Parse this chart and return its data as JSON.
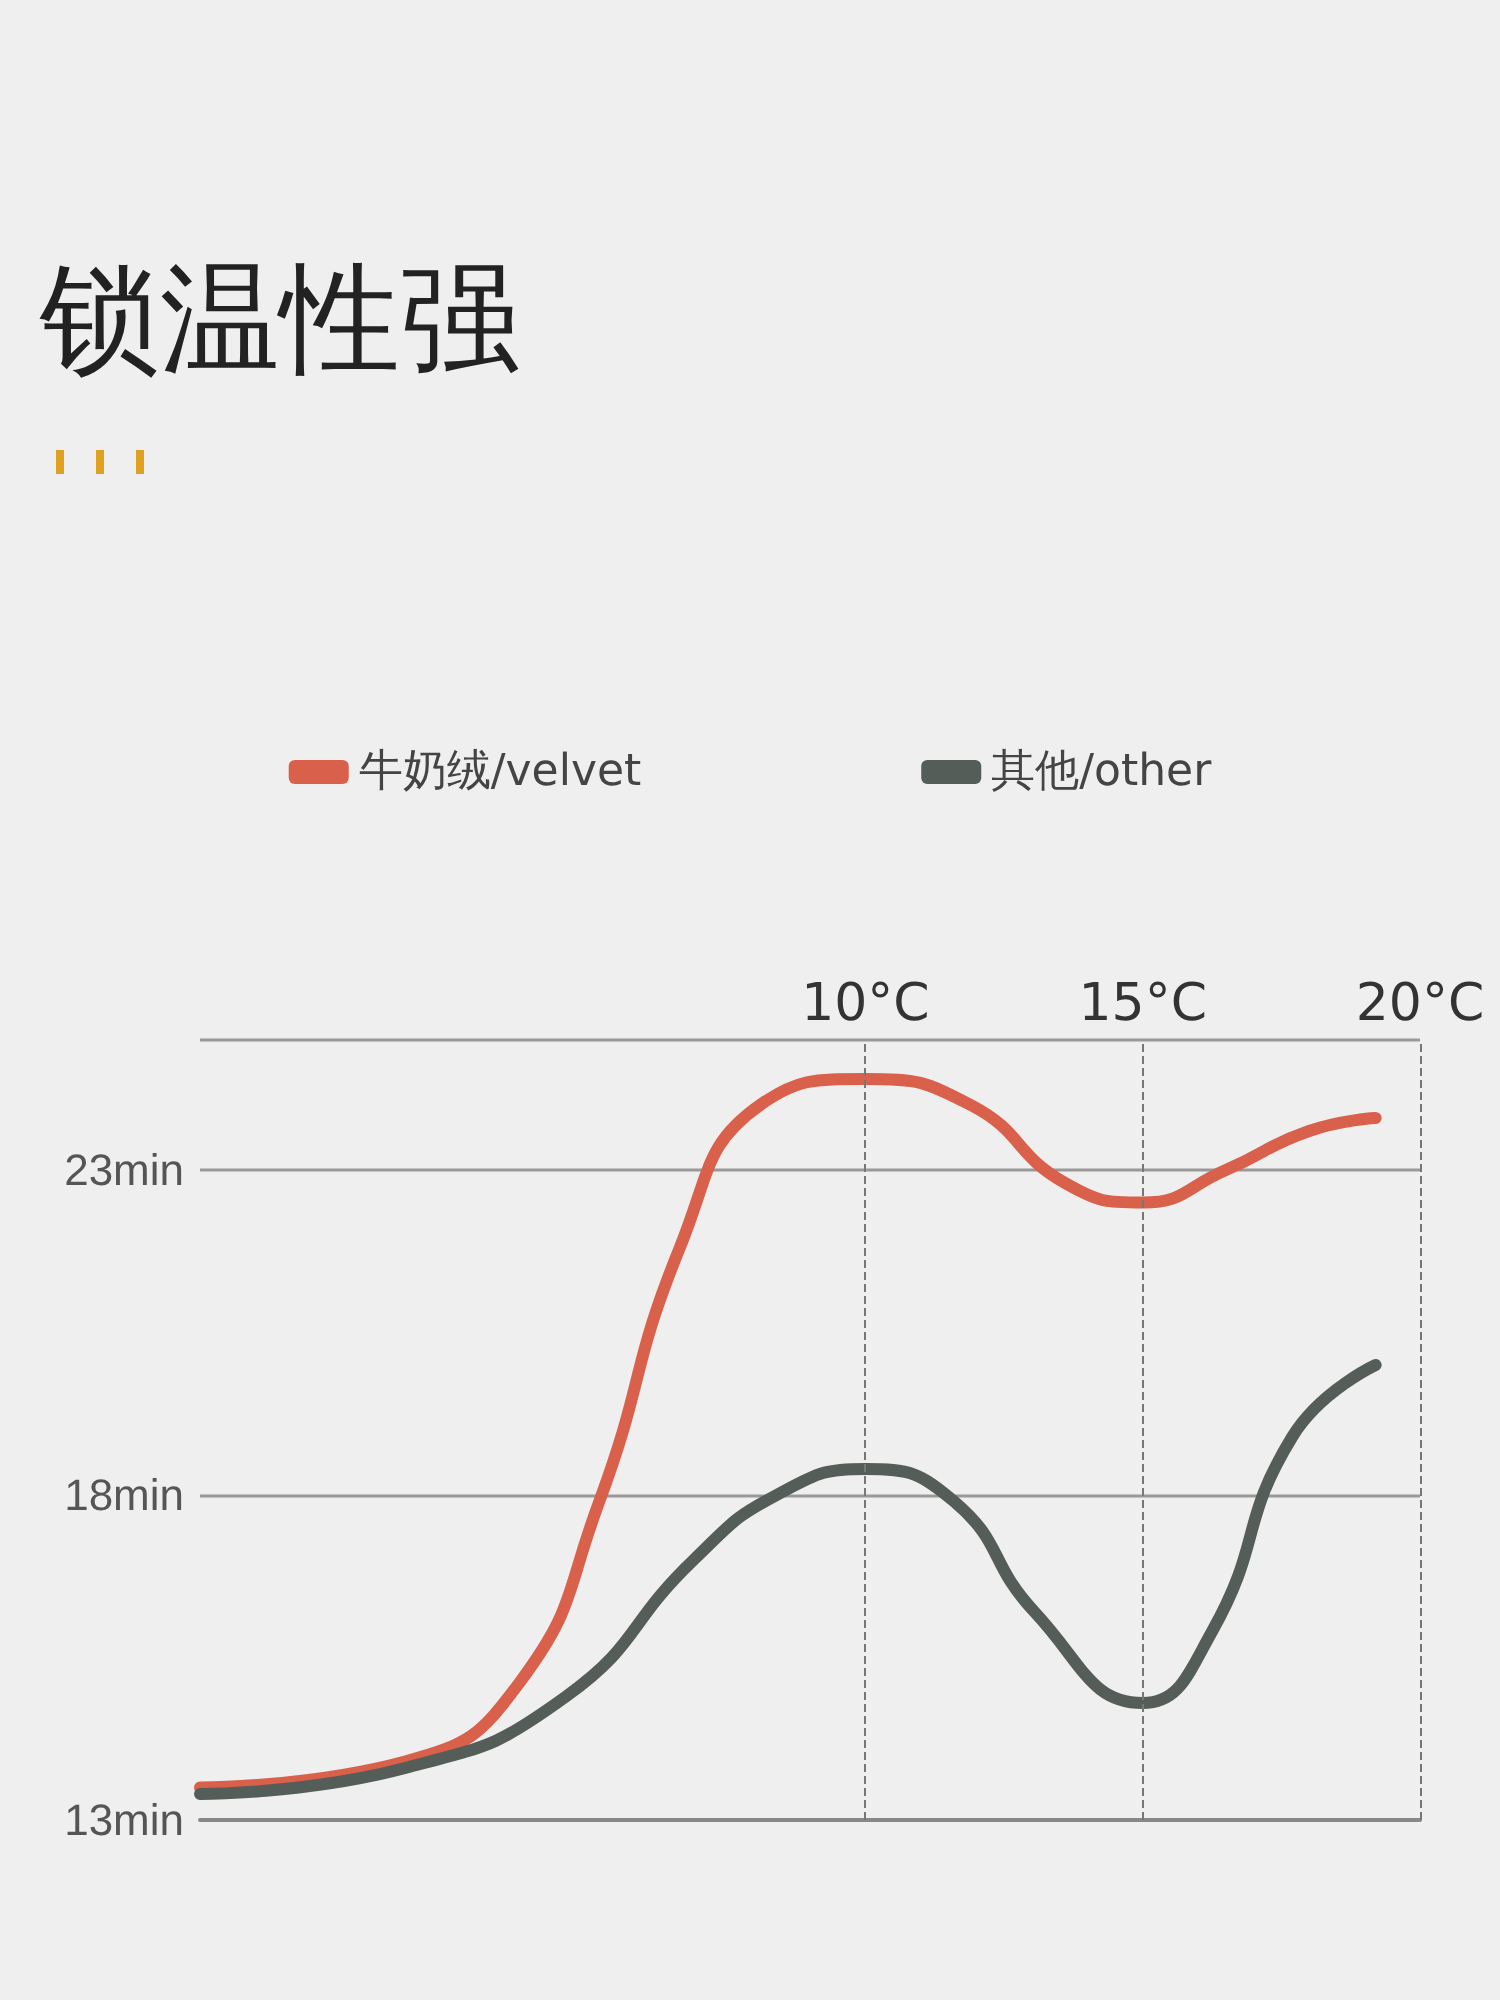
{
  "chart_data": {
    "type": "line",
    "title": "锁温性强",
    "legend": "top",
    "grid": "y",
    "marker": "none",
    "line_style": "solid",
    "tick_labels": "y",
    "xlim": [
      -2,
      20
    ],
    "ylim": [
      13,
      25
    ],
    "yticks": [
      {
        "value": 13,
        "label": "13min"
      },
      {
        "value": 18,
        "label": "18min"
      },
      {
        "value": 23,
        "label": "23min"
      }
    ],
    "ref_lines": [
      {
        "axis": "x",
        "value": 10,
        "label": "10°C",
        "line_style": "dashed"
      },
      {
        "axis": "x",
        "value": 15,
        "label": "15°C",
        "line_style": "dashed"
      },
      {
        "axis": "x",
        "value": 20,
        "label": "20°C",
        "line_style": "dashed"
      }
    ],
    "series": [
      {
        "name": "牛奶绒/velvet",
        "color": "#d9604a",
        "x": [
          -2,
          1.7,
          3.75,
          5.2,
          6.65,
          8.1,
          10,
          11.9,
          13.6,
          15,
          16.5,
          18,
          19.2
        ],
        "values": [
          13.5,
          13.9,
          15.1,
          17.9,
          21.8,
          24.0,
          24.4,
          24.0,
          22.8,
          22.5,
          23.0,
          23.6,
          23.8
        ]
      },
      {
        "name": "其他/other",
        "color": "#555d58",
        "x": [
          -2,
          1.7,
          4.6,
          6.9,
          8.4,
          10,
          11.6,
          13.05,
          15,
          16.25,
          17.7,
          19.2
        ],
        "values": [
          13.4,
          13.8,
          14.9,
          17.0,
          18.0,
          18.4,
          17.9,
          16.2,
          14.8,
          15.9,
          18.9,
          20.0
        ]
      }
    ]
  }
}
